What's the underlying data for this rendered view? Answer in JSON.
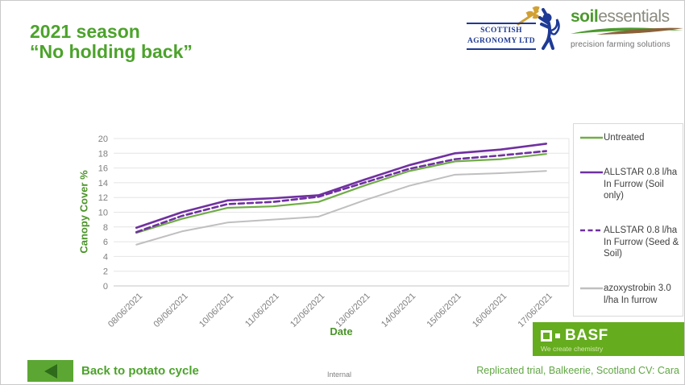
{
  "slide": {
    "title_line1": "2021 season",
    "title_line2": "“No holding back”"
  },
  "logos": {
    "scottish_agronomy": {
      "line1": "SCOTTISH",
      "line2": "AGRONOMY LTD"
    },
    "soilessentials": {
      "part1": "soil",
      "part2": "essentials",
      "tagline": "precision farming solutions"
    },
    "basf": {
      "name": "BASF",
      "tagline": "We create chemistry"
    }
  },
  "chart_data": {
    "type": "line",
    "title": "",
    "xlabel": "Date",
    "ylabel": "Canopy Cover %",
    "ylim": [
      0,
      20
    ],
    "ytick_step": 2,
    "grid": true,
    "legend_position": "right",
    "categories": [
      "08/06/2021",
      "09/06/2021",
      "10/06/2021",
      "11/06/2021",
      "12/06/2021",
      "13/06/2021",
      "14/06/2021",
      "15/06/2021",
      "16/06/2021",
      "17/06/2021"
    ],
    "series": [
      {
        "name": "Untreated",
        "color": "#70AD47",
        "dash": "solid",
        "width": 2.2,
        "values": [
          7.2,
          9.1,
          10.6,
          10.8,
          11.4,
          13.6,
          15.6,
          16.9,
          17.2,
          17.9
        ]
      },
      {
        "name": "ALLSTAR 0.8 l/ha In Furrow (Soil only)",
        "color": "#7030A0",
        "dash": "solid",
        "width": 2.6,
        "values": [
          7.9,
          10.0,
          11.6,
          11.9,
          12.3,
          14.4,
          16.4,
          18.0,
          18.5,
          19.3
        ]
      },
      {
        "name": "ALLSTAR 0.8 l/ha In Furrow (Seed & Soil)",
        "color": "#7030A0",
        "dash": "dashed",
        "width": 2.6,
        "values": [
          7.3,
          9.5,
          11.1,
          11.4,
          12.1,
          14.0,
          15.9,
          17.2,
          17.7,
          18.3
        ]
      },
      {
        "name": "azoxystrobin 3.0 l/ha In furrow",
        "color": "#BFBFBF",
        "dash": "solid",
        "width": 2.0,
        "values": [
          5.6,
          7.4,
          8.6,
          9.0,
          9.4,
          11.6,
          13.6,
          15.1,
          15.3,
          15.6
        ]
      }
    ]
  },
  "footer": {
    "back_button": "Back to potato cycle",
    "internal": "Internal",
    "note": "Replicated trial, Balkeerie, Scotland CV: Cara"
  },
  "colors": {
    "accent_green": "#4CA32B",
    "axis_green": "#4A9427",
    "note_green": "#61A744",
    "basf_green": "#65AC1E",
    "button_green": "#5CA733",
    "button_arrow": "#2E6B1B",
    "sa_blue": "#1E3A96",
    "wheat_gold": "#D1A033",
    "soil_green": "#4C9A2E",
    "soil_brown": "#8A6239"
  }
}
